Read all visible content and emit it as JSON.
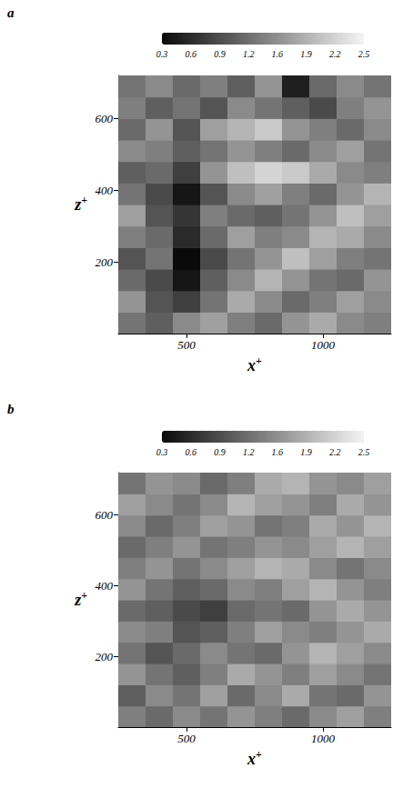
{
  "chart_data": [
    {
      "type": "heatmap",
      "title": "a",
      "x_label": "x+",
      "y_label": "z+",
      "xlim": [
        250,
        1250
      ],
      "ylim": [
        0,
        720
      ],
      "xticks": [
        500,
        1000
      ],
      "yticks": [
        200,
        400,
        600
      ],
      "colorbar": {
        "range": [
          0.3,
          2.5
        ],
        "ticks": [
          0.3,
          {
            "value": 0.614,
            "label": "0.6"
          },
          {
            "value": 0.929,
            "label": "0.9"
          },
          {
            "value": 1.243,
            "label": "1.2"
          },
          {
            "value": 1.557,
            "label": "1.6"
          },
          {
            "value": 1.871,
            "label": "1.9"
          },
          {
            "value": 2.186,
            "label": "2.2"
          },
          2.5
        ]
      },
      "x": [
        300,
        400,
        500,
        600,
        700,
        800,
        900,
        1000,
        1100,
        1200
      ],
      "y": [
        30,
        90,
        150,
        210,
        270,
        330,
        390,
        450,
        510,
        570,
        630,
        690
      ],
      "cells": [
        [
          1.3,
          1.1,
          1.5,
          1.7,
          1.4,
          1.2,
          1.6,
          1.8,
          1.5,
          1.4
        ],
        [
          1.6,
          1.0,
          0.8,
          1.3,
          1.8,
          1.5,
          1.2,
          1.4,
          1.7,
          1.5
        ],
        [
          1.2,
          0.9,
          0.4,
          1.1,
          1.5,
          1.9,
          1.6,
          1.3,
          1.2,
          1.6
        ],
        [
          1.0,
          1.3,
          0.3,
          0.9,
          1.3,
          1.6,
          2.0,
          1.7,
          1.4,
          1.3
        ],
        [
          1.4,
          1.2,
          0.6,
          1.2,
          1.7,
          1.4,
          1.5,
          1.9,
          1.8,
          1.5
        ],
        [
          1.7,
          1.0,
          0.7,
          1.4,
          1.2,
          1.1,
          1.3,
          1.6,
          2.0,
          1.7
        ],
        [
          1.3,
          0.9,
          0.4,
          1.0,
          1.5,
          1.7,
          1.4,
          1.2,
          1.6,
          1.9
        ],
        [
          1.1,
          1.2,
          0.8,
          1.6,
          2.0,
          2.2,
          2.1,
          1.8,
          1.5,
          1.4
        ],
        [
          1.5,
          1.4,
          1.1,
          1.3,
          1.6,
          1.4,
          1.2,
          1.5,
          1.7,
          1.3
        ],
        [
          1.2,
          1.6,
          1.0,
          1.7,
          1.9,
          2.1,
          1.6,
          1.4,
          1.2,
          1.5
        ],
        [
          1.4,
          1.1,
          1.3,
          1.0,
          1.5,
          1.3,
          1.1,
          0.9,
          1.4,
          1.6
        ],
        [
          1.3,
          1.5,
          1.2,
          1.4,
          1.1,
          1.6,
          0.5,
          1.2,
          1.5,
          1.3
        ]
      ]
    },
    {
      "type": "heatmap",
      "title": "b",
      "x_label": "x+",
      "y_label": "z+",
      "xlim": [
        250,
        1250
      ],
      "ylim": [
        0,
        720
      ],
      "xticks": [
        500,
        1000
      ],
      "yticks": [
        200,
        400,
        600
      ],
      "colorbar": {
        "range": [
          0.3,
          2.5
        ],
        "ticks": [
          0.3,
          {
            "value": 0.614,
            "label": "0.6"
          },
          {
            "value": 0.929,
            "label": "0.9"
          },
          {
            "value": 1.243,
            "label": "1.2"
          },
          {
            "value": 1.557,
            "label": "1.6"
          },
          {
            "value": 1.871,
            "label": "1.9"
          },
          {
            "value": 2.186,
            "label": "2.2"
          },
          2.5
        ]
      },
      "x": [
        300,
        400,
        500,
        600,
        700,
        800,
        900,
        1000,
        1100,
        1200
      ],
      "y": [
        30,
        90,
        150,
        210,
        270,
        330,
        390,
        450,
        510,
        570,
        630,
        690
      ],
      "cells": [
        [
          1.4,
          1.2,
          1.5,
          1.3,
          1.6,
          1.4,
          1.2,
          1.5,
          1.7,
          1.4
        ],
        [
          1.1,
          1.5,
          1.3,
          1.7,
          1.2,
          1.5,
          1.8,
          1.3,
          1.2,
          1.6
        ],
        [
          1.6,
          1.3,
          1.1,
          1.4,
          1.8,
          1.6,
          1.4,
          1.7,
          1.5,
          1.3
        ],
        [
          1.3,
          1.0,
          1.2,
          1.5,
          1.3,
          1.2,
          1.6,
          1.9,
          1.7,
          1.5
        ],
        [
          1.5,
          1.4,
          1.0,
          1.1,
          1.4,
          1.7,
          1.5,
          1.4,
          1.6,
          1.8
        ],
        [
          1.2,
          1.1,
          0.9,
          0.8,
          1.2,
          1.3,
          1.2,
          1.6,
          1.8,
          1.6
        ],
        [
          1.6,
          1.3,
          1.1,
          1.2,
          1.5,
          1.4,
          1.7,
          1.9,
          1.6,
          1.4
        ],
        [
          1.4,
          1.6,
          1.3,
          1.5,
          1.7,
          1.9,
          1.8,
          1.5,
          1.3,
          1.5
        ],
        [
          1.2,
          1.4,
          1.6,
          1.3,
          1.4,
          1.6,
          1.5,
          1.7,
          1.9,
          1.7
        ],
        [
          1.5,
          1.2,
          1.4,
          1.7,
          1.6,
          1.3,
          1.4,
          1.8,
          1.6,
          1.9
        ],
        [
          1.7,
          1.5,
          1.3,
          1.5,
          1.9,
          1.7,
          1.6,
          1.4,
          1.8,
          1.6
        ],
        [
          1.3,
          1.6,
          1.5,
          1.2,
          1.4,
          1.8,
          1.9,
          1.6,
          1.5,
          1.7
        ]
      ]
    }
  ]
}
